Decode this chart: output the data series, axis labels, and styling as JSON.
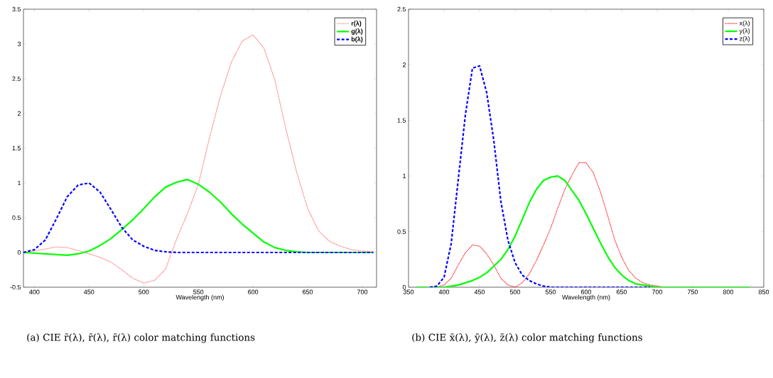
{
  "chart_data": [
    {
      "type": "line",
      "xlabel": "Wavelength (nm)",
      "xlim": [
        390,
        713
      ],
      "xticks": [
        400,
        450,
        500,
        550,
        600,
        650,
        700
      ],
      "ylim": [
        -0.5,
        3.5
      ],
      "yticks": [
        -0.5,
        0,
        0.5,
        1,
        1.5,
        2,
        2.5,
        3,
        3.5
      ],
      "legend": "top right",
      "marker": "none",
      "grid": false,
      "x": [
        390,
        400,
        410,
        420,
        430,
        440,
        450,
        460,
        470,
        480,
        490,
        500,
        510,
        520,
        530,
        540,
        550,
        560,
        570,
        580,
        590,
        600,
        610,
        620,
        630,
        640,
        650,
        660,
        670,
        680,
        690,
        700,
        710
      ],
      "series": [
        {
          "name": "r(λ)",
          "color": "#ff6666",
          "line_style": "dotted",
          "values": [
            0.0,
            0.02,
            0.05,
            0.08,
            0.07,
            0.03,
            -0.02,
            -0.07,
            -0.14,
            -0.25,
            -0.37,
            -0.44,
            -0.4,
            -0.24,
            0.19,
            0.56,
            0.98,
            1.64,
            2.24,
            2.73,
            3.04,
            3.13,
            2.94,
            2.48,
            1.78,
            1.15,
            0.63,
            0.31,
            0.16,
            0.09,
            0.04,
            0.02,
            0.01
          ]
        },
        {
          "name": "g(λ)",
          "color": "#00ff00",
          "line_style": "solid",
          "values": [
            0,
            -0.01,
            -0.02,
            -0.03,
            -0.04,
            -0.02,
            0.02,
            0.1,
            0.2,
            0.33,
            0.47,
            0.63,
            0.8,
            0.94,
            1.01,
            1.05,
            0.98,
            0.87,
            0.73,
            0.56,
            0.41,
            0.28,
            0.15,
            0.07,
            0.03,
            0.01,
            0,
            0,
            0,
            0,
            0,
            0,
            0
          ]
        },
        {
          "name": "b(λ)",
          "color": "#0000ff",
          "line_style": "dashed",
          "values": [
            0,
            0.04,
            0.18,
            0.48,
            0.8,
            0.97,
            1.0,
            0.87,
            0.62,
            0.36,
            0.18,
            0.09,
            0.03,
            0.01,
            0,
            0,
            0,
            0,
            0,
            0,
            0,
            0,
            0,
            0,
            0,
            0,
            0,
            0,
            0,
            0,
            0,
            0,
            0
          ]
        }
      ],
      "annotations": [
        "(a) CIE r̄(λ), r̄(λ), r̄(λ) color matching functions"
      ]
    },
    {
      "type": "line",
      "xlabel": "Wavelength (nm)",
      "xlim": [
        350,
        850
      ],
      "xticks": [
        350,
        400,
        450,
        500,
        550,
        600,
        650,
        700,
        750,
        800,
        850
      ],
      "ylim": [
        0,
        2.5
      ],
      "yticks": [
        0,
        0.5,
        1,
        1.5,
        2,
        2.5
      ],
      "legend": "top right",
      "marker": "none",
      "grid": false,
      "x": [
        360,
        370,
        380,
        390,
        400,
        410,
        420,
        430,
        440,
        450,
        460,
        470,
        480,
        490,
        500,
        510,
        520,
        530,
        540,
        550,
        560,
        570,
        580,
        590,
        600,
        610,
        620,
        630,
        640,
        650,
        660,
        670,
        680,
        690,
        700,
        710,
        720,
        730,
        740,
        750,
        760,
        770,
        780,
        790,
        800,
        810,
        820,
        830
      ],
      "series": [
        {
          "name": "x(λ)",
          "color": "#ff0000",
          "line_style": "dotted",
          "values": [
            null,
            null,
            0,
            0,
            0.02,
            0.08,
            0.2,
            0.31,
            0.38,
            0.37,
            0.3,
            0.2,
            0.08,
            0.02,
            0,
            0.04,
            0.12,
            0.24,
            0.38,
            0.53,
            0.71,
            0.88,
            1.01,
            1.12,
            1.12,
            1.03,
            0.86,
            0.65,
            0.43,
            0.27,
            0.15,
            0.08,
            0.04,
            0.02,
            0.01,
            0,
            0,
            0,
            null,
            null,
            null,
            null,
            null,
            null,
            null,
            null,
            null,
            null
          ]
        },
        {
          "name": "y(λ)",
          "color": "#00ff00",
          "line_style": "solid",
          "values": [
            0,
            0,
            0,
            0,
            0,
            0.01,
            0.02,
            0.04,
            0.06,
            0.09,
            0.13,
            0.19,
            0.25,
            0.34,
            0.46,
            0.61,
            0.76,
            0.88,
            0.96,
            0.99,
            1.0,
            0.96,
            0.87,
            0.78,
            0.66,
            0.53,
            0.4,
            0.28,
            0.18,
            0.11,
            0.06,
            0.03,
            0.02,
            0.01,
            0,
            0,
            0,
            0,
            0,
            0,
            0,
            0,
            0,
            0,
            0,
            0,
            0,
            0
          ]
        },
        {
          "name": "z(λ)",
          "color": "#0000ff",
          "line_style": "dashed",
          "values": [
            null,
            null,
            0,
            0.01,
            0.09,
            0.39,
            0.97,
            1.55,
            1.97,
            1.99,
            1.75,
            1.32,
            0.77,
            0.42,
            0.22,
            0.11,
            0.06,
            0.03,
            0.01,
            0,
            0,
            0,
            0,
            0,
            0,
            0,
            0,
            0,
            0,
            0,
            0,
            0,
            0,
            0,
            null,
            null,
            null,
            null,
            null,
            null,
            null,
            null,
            null,
            null,
            null,
            null,
            null,
            null
          ]
        }
      ],
      "annotations": [
        "(b) CIE x̄(λ), ȳ(λ), z̄(λ) color matching functions"
      ]
    }
  ]
}
